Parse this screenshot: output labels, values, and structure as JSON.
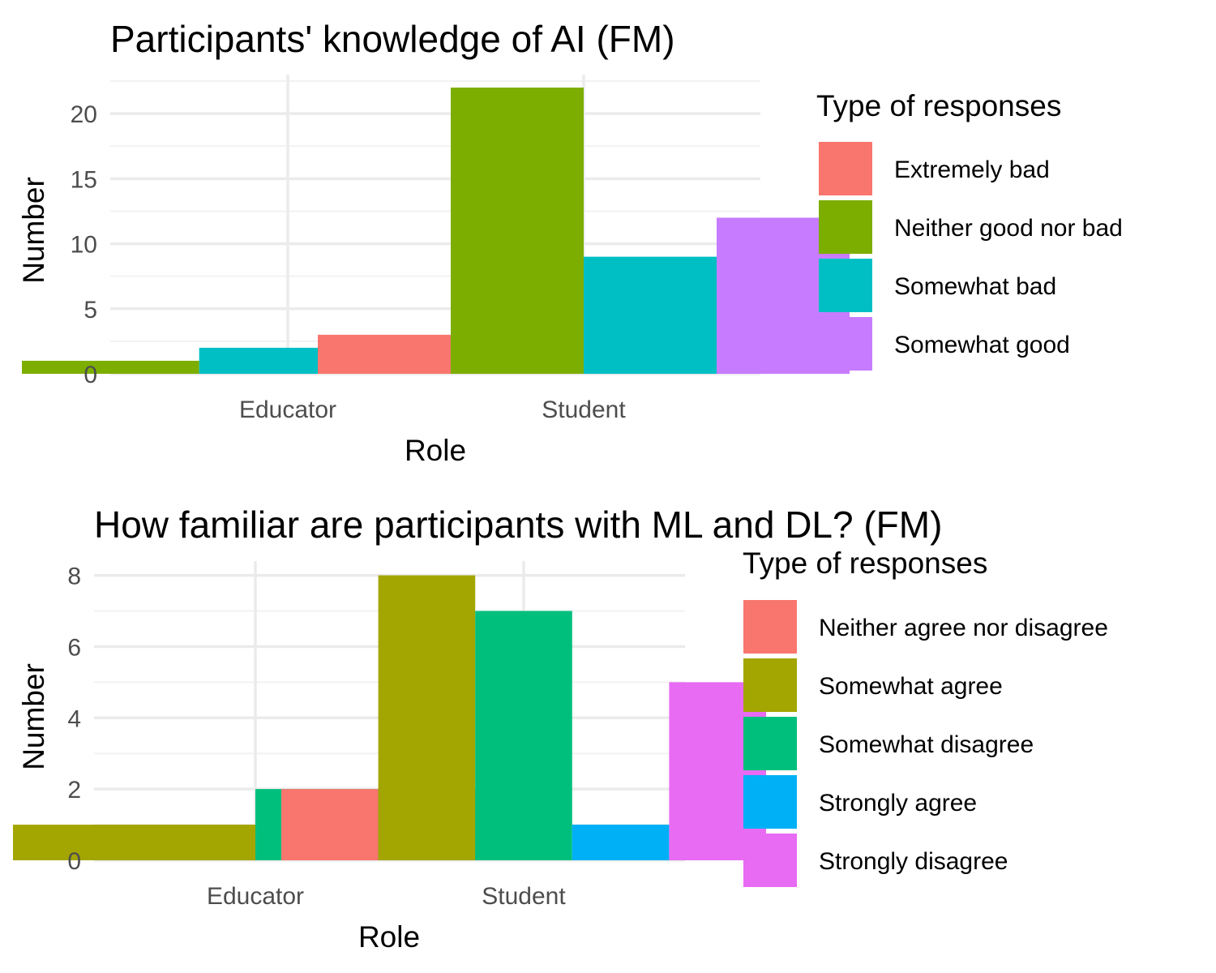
{
  "chart_data": [
    {
      "type": "bar",
      "title": "Participants' knowledge of AI (FM)",
      "xlabel": "Role",
      "ylabel": "Number",
      "categories": [
        "Educator",
        "Student"
      ],
      "ylim": [
        0,
        23
      ],
      "yticks": [
        0,
        5,
        10,
        15,
        20
      ],
      "grid": true,
      "legend": {
        "title": "Type of responses",
        "position": "right"
      },
      "series": [
        {
          "name": "Extremely bad",
          "color": "#F8766D",
          "values": [
            null,
            3
          ]
        },
        {
          "name": "Neither good nor bad",
          "color": "#7CAE00",
          "values": [
            1,
            22
          ]
        },
        {
          "name": "Somewhat bad",
          "color": "#00BFC4",
          "values": [
            2,
            9
          ]
        },
        {
          "name": "Somewhat good",
          "color": "#C77CFF",
          "values": [
            1,
            12
          ]
        }
      ]
    },
    {
      "type": "bar",
      "title": "How familiar are participants with ML and DL? (FM)",
      "xlabel": "Role",
      "ylabel": "Number",
      "categories": [
        "Educator",
        "Student"
      ],
      "ylim": [
        0,
        8.4
      ],
      "yticks": [
        0,
        2,
        4,
        6,
        8
      ],
      "grid": true,
      "legend": {
        "title": "Type of responses",
        "position": "right"
      },
      "series": [
        {
          "name": "Neither agree nor disagree",
          "color": "#F8766D",
          "values": [
            null,
            2
          ]
        },
        {
          "name": "Somewhat agree",
          "color": "#A3A500",
          "values": [
            1,
            8
          ]
        },
        {
          "name": "Somewhat disagree",
          "color": "#00BF7D",
          "values": [
            2,
            7
          ]
        },
        {
          "name": "Strongly agree",
          "color": "#00B0F6",
          "values": [
            null,
            1
          ]
        },
        {
          "name": "Strongly disagree",
          "color": "#E76BF3",
          "values": [
            null,
            5
          ]
        }
      ]
    }
  ]
}
